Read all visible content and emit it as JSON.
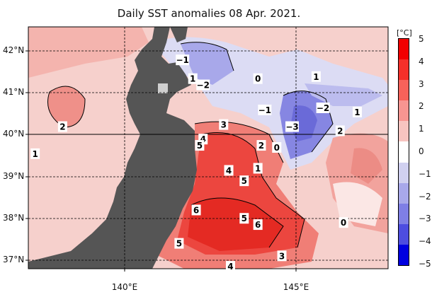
{
  "title": "Daily SST anomalies 08 Apr. 2021.",
  "colors": {
    "land": "#555555",
    "ocean_background": "#f6d0cc"
  },
  "latitude_labels": [
    "42°N",
    "41°N",
    "40°N",
    "39°N",
    "38°N",
    "37°N"
  ],
  "longitude_labels": [
    "140°E",
    "145°E"
  ],
  "colorbar": {
    "unit": "[°C]",
    "ticks": [
      "5",
      "4",
      "3",
      "2",
      "1",
      "0",
      "−1",
      "−2",
      "−3",
      "−4",
      "−5"
    ],
    "colors": [
      "#f20000",
      "#f5302a",
      "#f7625a",
      "#f79591",
      "#f7c4c0",
      "#ffffff",
      "#d0d0f0",
      "#a8a8ea",
      "#7f7fe5",
      "#4d4de0",
      "#0000e0"
    ]
  },
  "contour_labels": [
    {
      "text": "−1",
      "lon": 141.8,
      "lat": 41.8
    },
    {
      "text": "1",
      "lon": 142.1,
      "lat": 41.35
    },
    {
      "text": "−2",
      "lon": 142.4,
      "lat": 41.2
    },
    {
      "text": "0",
      "lon": 144.0,
      "lat": 41.35
    },
    {
      "text": "1",
      "lon": 145.7,
      "lat": 41.4
    },
    {
      "text": "−1",
      "lon": 144.2,
      "lat": 40.6
    },
    {
      "text": "−2",
      "lon": 145.9,
      "lat": 40.65
    },
    {
      "text": "1",
      "lon": 146.9,
      "lat": 40.55
    },
    {
      "text": "−3",
      "lon": 145.0,
      "lat": 40.2
    },
    {
      "text": "2",
      "lon": 146.4,
      "lat": 40.1
    },
    {
      "text": "2",
      "lon": 138.3,
      "lat": 40.2
    },
    {
      "text": "1",
      "lon": 137.5,
      "lat": 39.55
    },
    {
      "text": "3",
      "lon": 143.0,
      "lat": 40.25
    },
    {
      "text": "4",
      "lon": 142.4,
      "lat": 39.9
    },
    {
      "text": "5",
      "lon": 142.3,
      "lat": 39.75
    },
    {
      "text": "2",
      "lon": 144.1,
      "lat": 39.75
    },
    {
      "text": "0",
      "lon": 144.55,
      "lat": 39.7
    },
    {
      "text": "4",
      "lon": 143.15,
      "lat": 39.15
    },
    {
      "text": "1",
      "lon": 144.0,
      "lat": 39.2
    },
    {
      "text": "5",
      "lon": 143.6,
      "lat": 38.9
    },
    {
      "text": "6",
      "lon": 142.2,
      "lat": 38.2
    },
    {
      "text": "5",
      "lon": 143.6,
      "lat": 38.0
    },
    {
      "text": "6",
      "lon": 144.0,
      "lat": 37.85
    },
    {
      "text": "5",
      "lon": 141.7,
      "lat": 37.4
    },
    {
      "text": "0",
      "lon": 146.5,
      "lat": 37.9
    },
    {
      "text": "3",
      "lon": 144.7,
      "lat": 37.1
    },
    {
      "text": "4",
      "lon": 143.2,
      "lat": 36.85
    }
  ]
}
